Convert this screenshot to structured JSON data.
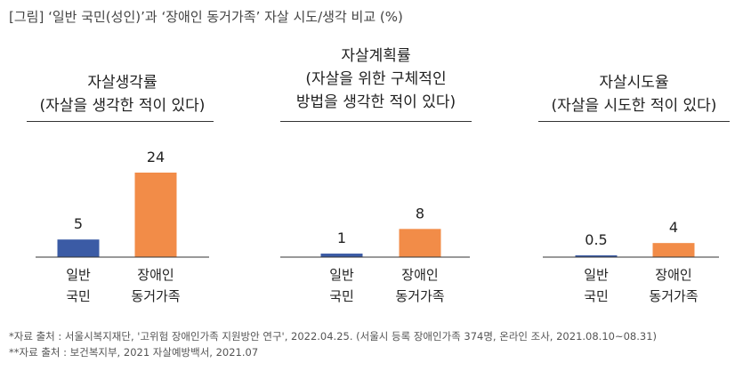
{
  "figure_title": "[그림] ‘일반 국민(성인)’과 ‘장애인 동거가족’ 자살 시도/생각 비교 (%)",
  "colors": {
    "general": "#3b5ba5",
    "family": "#f28c48",
    "axis": "#333333"
  },
  "panels": [
    {
      "title_lines": [
        "자살생각률",
        "(자살을 생각한 적이 있다)"
      ]
    },
    {
      "title_lines": [
        "자살계획률",
        "(자살을 위한 구체적인",
        "방법을 생각한 적이 있다)"
      ]
    },
    {
      "title_lines": [
        "자살시도율",
        "(자살을 시도한 적이 있다)"
      ]
    }
  ],
  "category_labels": [
    [
      "일반",
      "국민"
    ],
    [
      "장애인",
      "동거가족"
    ]
  ],
  "chart_data": [
    {
      "type": "bar",
      "title": "자살생각률",
      "categories": [
        "일반 국민",
        "장애인 동거가족"
      ],
      "values": [
        5,
        24
      ],
      "value_labels": [
        "5",
        "24"
      ]
    },
    {
      "type": "bar",
      "title": "자살계획률",
      "categories": [
        "일반 국민",
        "장애인 동거가족"
      ],
      "values": [
        1,
        8
      ],
      "value_labels": [
        "1",
        "8"
      ]
    },
    {
      "type": "bar",
      "title": "자살시도율",
      "categories": [
        "일반 국민",
        "장애인 동거가족"
      ],
      "values": [
        0.5,
        4
      ],
      "value_labels": [
        "0.5",
        "4"
      ]
    }
  ],
  "footnotes": [
    "*자료 출처 : 서울시복지재단, '고위험 장애인가족 지원방안 연구', 2022.04.25. (서울시 등록 장애인가족 374명, 온라인 조사, 2021.08.10~08.31)",
    "**자료 출처 : 보건복지부, 2021 자살예방백서, 2021.07"
  ]
}
